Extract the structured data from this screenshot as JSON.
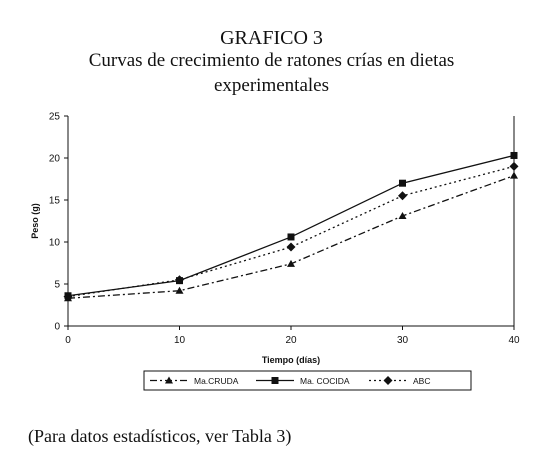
{
  "header": {
    "line1": "GRAFICO 3",
    "line2": "Curvas de crecimiento de ratones crías en dietas",
    "line3": "experimentales"
  },
  "footnote": "(Para datos estadísticos, ver Tabla 3)",
  "chart_data": {
    "type": "line",
    "title": "GRAFICO 3 — Curvas de crecimiento de ratones crías en dietas experimentales",
    "xlabel": "Tiempo (días)",
    "ylabel": "Peso (g)",
    "x": [
      0,
      10,
      20,
      30,
      40
    ],
    "xlim": [
      0,
      40
    ],
    "ylim": [
      0,
      25
    ],
    "xticks": [
      "0",
      "10",
      "20",
      "30",
      "40"
    ],
    "yticks": [
      "0",
      "5",
      "10",
      "15",
      "20",
      "25"
    ],
    "grid": false,
    "legend_position": "bottom",
    "series": [
      {
        "name": "Ma.CRUDA",
        "values": [
          3.3,
          4.2,
          7.4,
          13.1,
          17.9
        ],
        "marker": "triangle",
        "dash": "dash-dot",
        "color": "#111111"
      },
      {
        "name": "Ma. COCIDA",
        "values": [
          3.6,
          5.4,
          10.6,
          17.0,
          20.3
        ],
        "marker": "square",
        "dash": "solid",
        "color": "#111111"
      },
      {
        "name": "ABC",
        "values": [
          3.5,
          5.5,
          9.4,
          15.5,
          19.0
        ],
        "marker": "diamond",
        "dash": "dotted",
        "color": "#111111"
      }
    ]
  }
}
